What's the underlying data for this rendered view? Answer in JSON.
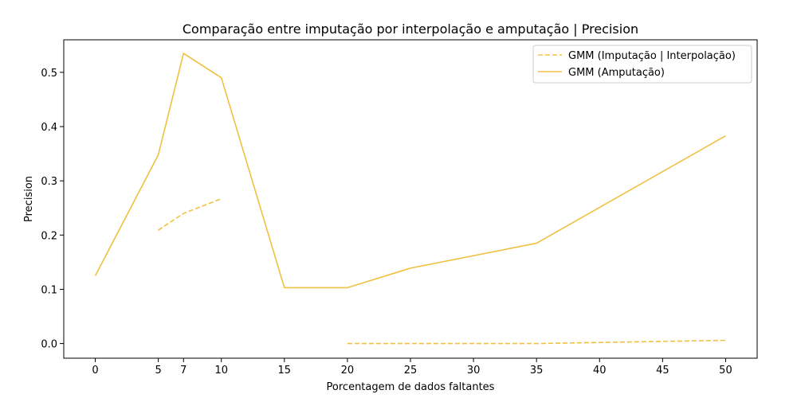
{
  "chart_data": {
    "type": "line",
    "title": "Comparação entre imputação por interpolação e amputação | Precision",
    "xlabel": "Porcentagem de dados faltantes",
    "ylabel": "Precision",
    "xlim": [
      -2.5,
      52.5
    ],
    "ylim": [
      -0.027,
      0.56
    ],
    "x_ticks": [
      0,
      5,
      7,
      10,
      15,
      20,
      25,
      30,
      35,
      40,
      45,
      50
    ],
    "y_ticks": [
      0.0,
      0.1,
      0.2,
      0.3,
      0.4,
      0.5
    ],
    "grid": false,
    "legend_position": "top-right",
    "series": [
      {
        "name": "GMM (Imputação | Interpolação)",
        "color": "#f0c040",
        "style": "dashed",
        "segments": [
          {
            "x": [
              5,
              7,
              10
            ],
            "y": [
              0.209,
              0.24,
              0.267
            ]
          },
          {
            "x": [
              20,
              25,
              35,
              50
            ],
            "y": [
              0.0,
              0.0,
              0.0,
              0.006
            ]
          }
        ]
      },
      {
        "name": "GMM (Amputação)",
        "color": "#f0c040",
        "style": "solid",
        "segments": [
          {
            "x": [
              0,
              5,
              7,
              10,
              15,
              20,
              25,
              35,
              50
            ],
            "y": [
              0.125,
              0.348,
              0.535,
              0.49,
              0.103,
              0.103,
              0.139,
              0.185,
              0.383
            ]
          }
        ]
      }
    ]
  }
}
